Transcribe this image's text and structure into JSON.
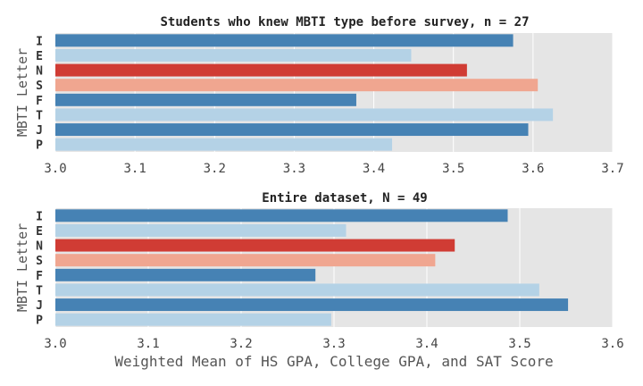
{
  "chart_data": [
    {
      "type": "bar",
      "orientation": "horizontal",
      "title": "Students who knew MBTI type before survey, n = 27",
      "ylabel": "MBTI Letter",
      "xlabel": "",
      "xlim": [
        3.0,
        3.7
      ],
      "xticks": [
        "3.0",
        "3.1",
        "3.2",
        "3.3",
        "3.4",
        "3.5",
        "3.6",
        "3.7"
      ],
      "grid": true,
      "categories": [
        "I",
        "E",
        "N",
        "S",
        "F",
        "T",
        "J",
        "P"
      ],
      "values": [
        3.575,
        3.447,
        3.517,
        3.606,
        3.378,
        3.625,
        3.594,
        3.423
      ],
      "colors": [
        "#4682b4",
        "#b4d2e6",
        "#d03c34",
        "#f0a690",
        "#4682b4",
        "#b4d2e6",
        "#4682b4",
        "#b4d2e6"
      ]
    },
    {
      "type": "bar",
      "orientation": "horizontal",
      "title": "Entire dataset, N = 49",
      "ylabel": "MBTI Letter",
      "xlabel": "Weighted Mean of HS GPA, College GPA, and SAT Score",
      "xlim": [
        3.0,
        3.6
      ],
      "xticks": [
        "3.0",
        "3.1",
        "3.2",
        "3.3",
        "3.4",
        "3.5",
        "3.6"
      ],
      "grid": true,
      "categories": [
        "I",
        "E",
        "N",
        "S",
        "F",
        "T",
        "J",
        "P"
      ],
      "values": [
        3.487,
        3.313,
        3.43,
        3.409,
        3.28,
        3.521,
        3.552,
        3.297
      ],
      "colors": [
        "#4682b4",
        "#b4d2e6",
        "#d03c34",
        "#f0a690",
        "#4682b4",
        "#b4d2e6",
        "#4682b4",
        "#b4d2e6"
      ]
    }
  ]
}
